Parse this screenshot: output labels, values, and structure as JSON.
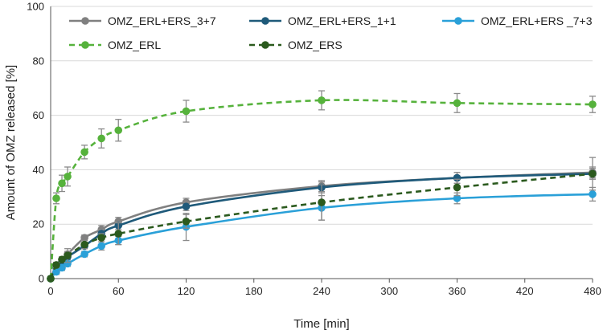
{
  "chart_data": {
    "type": "line",
    "xlabel": "Time [min]",
    "ylabel": "Amount of OMZ released [%]",
    "xlim": [
      0,
      480
    ],
    "ylim": [
      0,
      100
    ],
    "x_ticks": [
      "0",
      "60",
      "120",
      "180",
      "240",
      "300",
      "360",
      "420",
      "480"
    ],
    "y_ticks": [
      "0",
      "20",
      "40",
      "60",
      "80",
      "100"
    ],
    "grid": true,
    "legend_position": "top",
    "series": [
      {
        "name": "OMZ_ERL+ERS_3+7",
        "color": "#808080",
        "style": "solid",
        "x": [
          0,
          5,
          10,
          15,
          30,
          45,
          60,
          120,
          240,
          360,
          480
        ],
        "y": [
          0,
          5,
          7,
          9,
          15,
          18,
          21,
          28,
          34,
          37,
          39
        ],
        "err": [
          0,
          1,
          1,
          1,
          1,
          1.5,
          1.5,
          1.5,
          2,
          2,
          2
        ]
      },
      {
        "name": "OMZ_ERL+ERS_1+1",
        "color": "#1f5a7a",
        "style": "solid",
        "x": [
          0,
          5,
          10,
          15,
          30,
          45,
          60,
          120,
          240,
          360,
          480
        ],
        "y": [
          0,
          4,
          6,
          8,
          12,
          16.5,
          19.5,
          26.5,
          33.5,
          37,
          38.5
        ],
        "err": [
          0,
          1,
          1,
          1,
          1,
          1.5,
          1.5,
          1.5,
          2,
          2,
          2
        ]
      },
      {
        "name": "OMZ_ERL+ERS _7+3",
        "color": "#2aa0d8",
        "style": "solid",
        "x": [
          0,
          5,
          10,
          15,
          30,
          45,
          60,
          120,
          240,
          360,
          480
        ],
        "y": [
          0,
          2.5,
          4,
          5.5,
          9,
          12,
          14,
          19,
          26,
          29.5,
          31
        ],
        "err": [
          0,
          1,
          1,
          1,
          1,
          1.5,
          1.5,
          5,
          4.5,
          2,
          2.5
        ]
      },
      {
        "name": "OMZ_ERL",
        "color": "#56b23c",
        "style": "dashed",
        "x": [
          0,
          5,
          10,
          15,
          30,
          45,
          60,
          120,
          240,
          360,
          480
        ],
        "y": [
          0,
          29.5,
          35,
          37.5,
          46.5,
          51.5,
          54.5,
          61.5,
          65.5,
          64.5,
          64
        ],
        "err": [
          0,
          2,
          3,
          3.5,
          2.5,
          3.5,
          4,
          4,
          3.5,
          3.5,
          3
        ]
      },
      {
        "name": "OMZ_ERS",
        "color": "#2b5a1e",
        "style": "dashed",
        "x": [
          0,
          5,
          10,
          15,
          30,
          45,
          60,
          120,
          240,
          360,
          480
        ],
        "y": [
          0,
          5,
          7,
          8.5,
          12.5,
          15,
          16.5,
          21,
          28,
          33.5,
          38.5
        ],
        "err": [
          0,
          1,
          1,
          2.5,
          1.5,
          1.5,
          4,
          2.5,
          6.5,
          3,
          6
        ]
      }
    ]
  }
}
